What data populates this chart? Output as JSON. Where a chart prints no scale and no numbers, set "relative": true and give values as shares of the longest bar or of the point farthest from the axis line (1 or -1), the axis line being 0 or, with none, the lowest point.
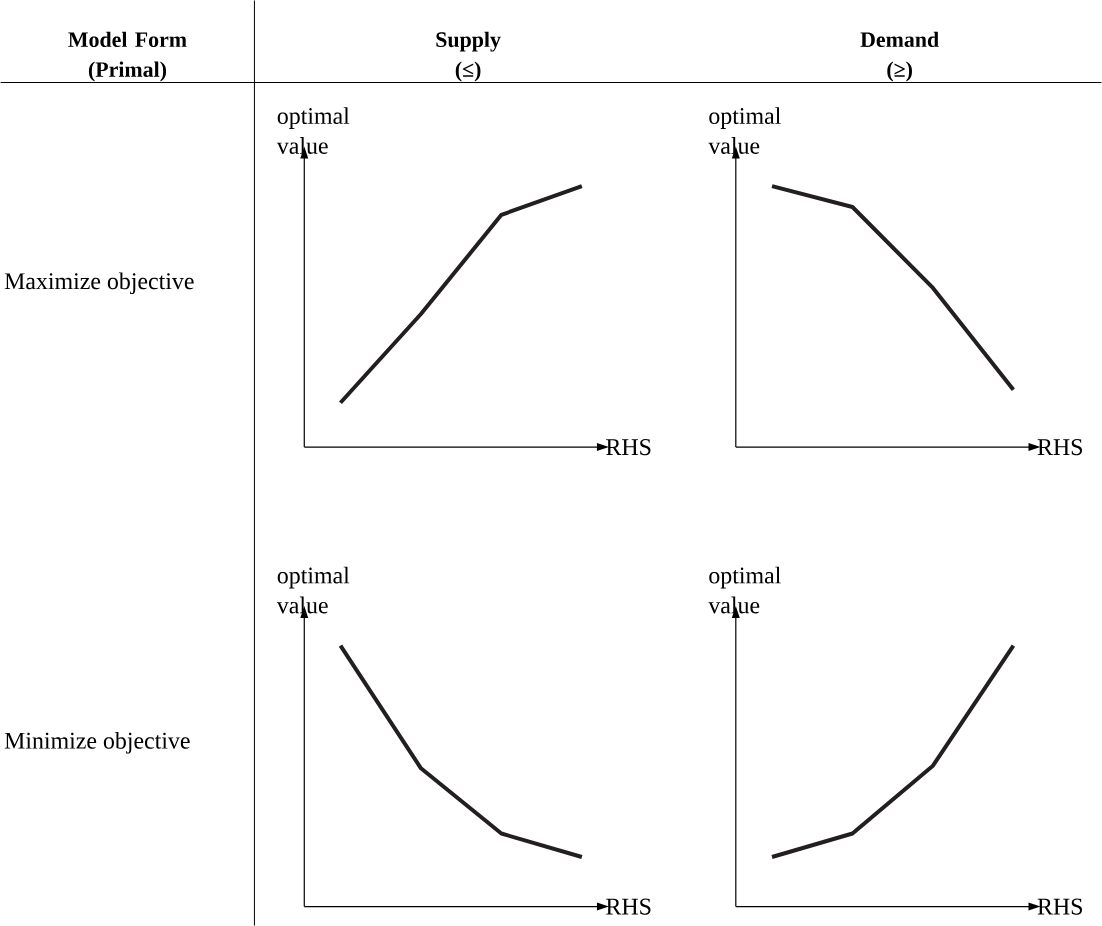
{
  "chart_data": [
    {
      "type": "line",
      "relative": true,
      "title": "Supply (≤)",
      "annotations": [
        "Model Form (Primal)",
        "Maximize objective"
      ],
      "xlabel": "RHS",
      "ylabel": "optimal value",
      "categories": [
        null,
        null,
        null,
        null
      ],
      "values": [
        0.17,
        0.51,
        0.89,
        1
      ],
      "color": "#231f20"
    },
    {
      "type": "line",
      "relative": true,
      "title": "Demand (≥)",
      "xlabel": "RHS",
      "ylabel": "optimal value",
      "categories": [
        null,
        null,
        null,
        null
      ],
      "values": [
        1,
        0.92,
        0.61,
        0.22
      ],
      "color": "#231f20"
    },
    {
      "type": "line",
      "relative": true,
      "annotations": [
        "Minimize objective"
      ],
      "xlabel": "RHS",
      "ylabel": "optimal value",
      "categories": [
        null,
        null,
        null,
        null
      ],
      "values": [
        1,
        0.53,
        0.28,
        0.19
      ],
      "color": "#231f20"
    },
    {
      "type": "line",
      "relative": true,
      "xlabel": "RHS",
      "ylabel": "optimal value",
      "categories": [
        null,
        null,
        null,
        null
      ],
      "values": [
        0.19,
        0.28,
        0.54,
        1
      ],
      "color": "#231f20"
    }
  ]
}
